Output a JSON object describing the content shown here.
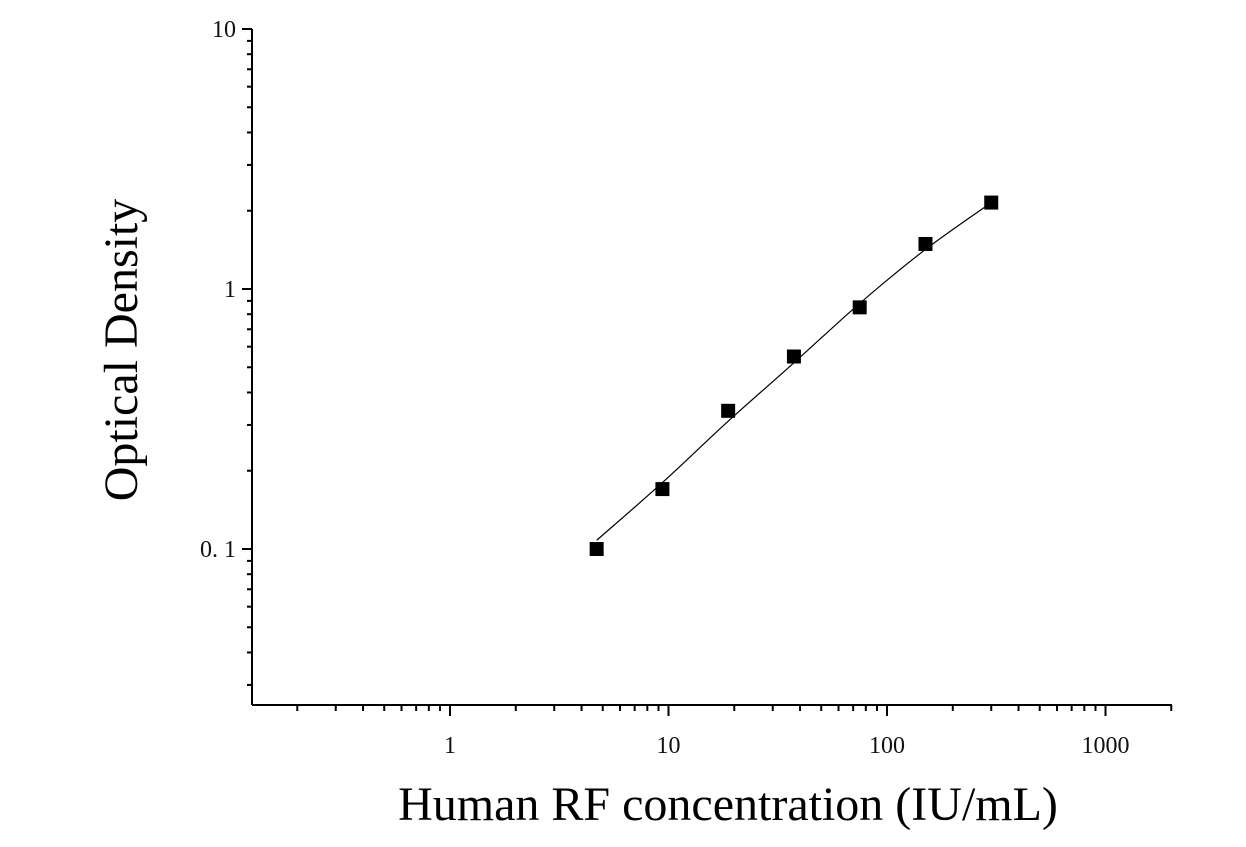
{
  "chart_data": {
    "type": "scatter",
    "xlabel": "Human RF concentration (IU/mL)",
    "ylabel": "Optical Density",
    "x_scale": "log",
    "y_scale": "log",
    "xlim": [
      0.12,
      2000
    ],
    "ylim": [
      0.025,
      10
    ],
    "x_ticks": [
      {
        "value": 1,
        "label": "1"
      },
      {
        "value": 10,
        "label": "10"
      },
      {
        "value": 100,
        "label": "100"
      },
      {
        "value": 1000,
        "label": "1000"
      }
    ],
    "y_ticks": [
      {
        "value": 0.1,
        "label": "0. 1"
      },
      {
        "value": 1,
        "label": "1"
      },
      {
        "value": 10,
        "label": "10"
      }
    ],
    "grid": false,
    "series": [
      {
        "x": [
          4.69,
          9.38,
          18.75,
          37.5,
          75,
          150,
          300
        ],
        "y": [
          0.1,
          0.17,
          0.34,
          0.55,
          0.85,
          1.49,
          2.15
        ]
      }
    ],
    "fit_curve": {
      "x": [
        4.69,
        9.38,
        18.75,
        37.5,
        75,
        150,
        300
      ],
      "y": [
        0.108,
        0.18,
        0.31,
        0.52,
        0.88,
        1.42,
        2.15
      ]
    }
  }
}
